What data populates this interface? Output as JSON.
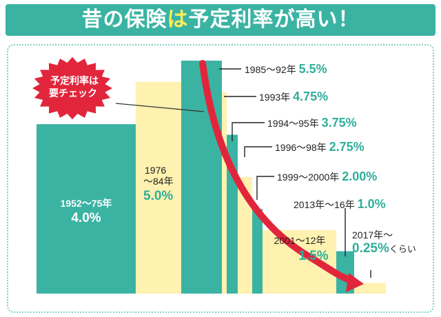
{
  "banner": {
    "title_part1": "昔の保険",
    "title_part2": "は",
    "title_part3": "予定利率が高い！",
    "bg_color": "#3bb3a3",
    "accent_color": "#ffef5a"
  },
  "callout": {
    "line1": "予定利率は",
    "line2": "要チェック",
    "bg_color": "#e1263c"
  },
  "colors": {
    "teal": "#3bb3a3",
    "cream": "#fff1b0",
    "label_teal": "#2fae9b",
    "arrow": "#e1263c"
  },
  "chart_data": {
    "type": "bar",
    "title": "昔の保険は予定利率が高い！",
    "xlabel": "",
    "ylabel": "",
    "ylim": [
      0,
      5.5
    ],
    "grid": false,
    "bars": [
      {
        "period": "1952〜75年",
        "value": 4.0,
        "label": "4.0%",
        "color": "teal"
      },
      {
        "period": "1976〜84年",
        "value": 5.0,
        "label": "5.0%",
        "color": "cream"
      },
      {
        "period": "1985〜92年",
        "value": 5.5,
        "label": "5.5%",
        "color": "teal"
      },
      {
        "period": "1993年",
        "value": 4.75,
        "label": "4.75%",
        "color": "cream"
      },
      {
        "period": "1994〜95年",
        "value": 3.75,
        "label": "3.75%",
        "color": "teal"
      },
      {
        "period": "1996〜98年",
        "value": 2.75,
        "label": "2.75%",
        "color": "cream"
      },
      {
        "period": "1999〜2000年",
        "value": 2.0,
        "label": "2.00%",
        "color": "teal"
      },
      {
        "period": "2001〜12年",
        "value": 1.5,
        "label": "1.5%",
        "color": "cream"
      },
      {
        "period": "2013年〜16年",
        "value": 1.0,
        "label": "1.0%",
        "color": "teal"
      },
      {
        "period": "2017年〜",
        "value": 0.25,
        "label": "0.25%",
        "suffix": "くらい",
        "color": "cream"
      }
    ]
  }
}
